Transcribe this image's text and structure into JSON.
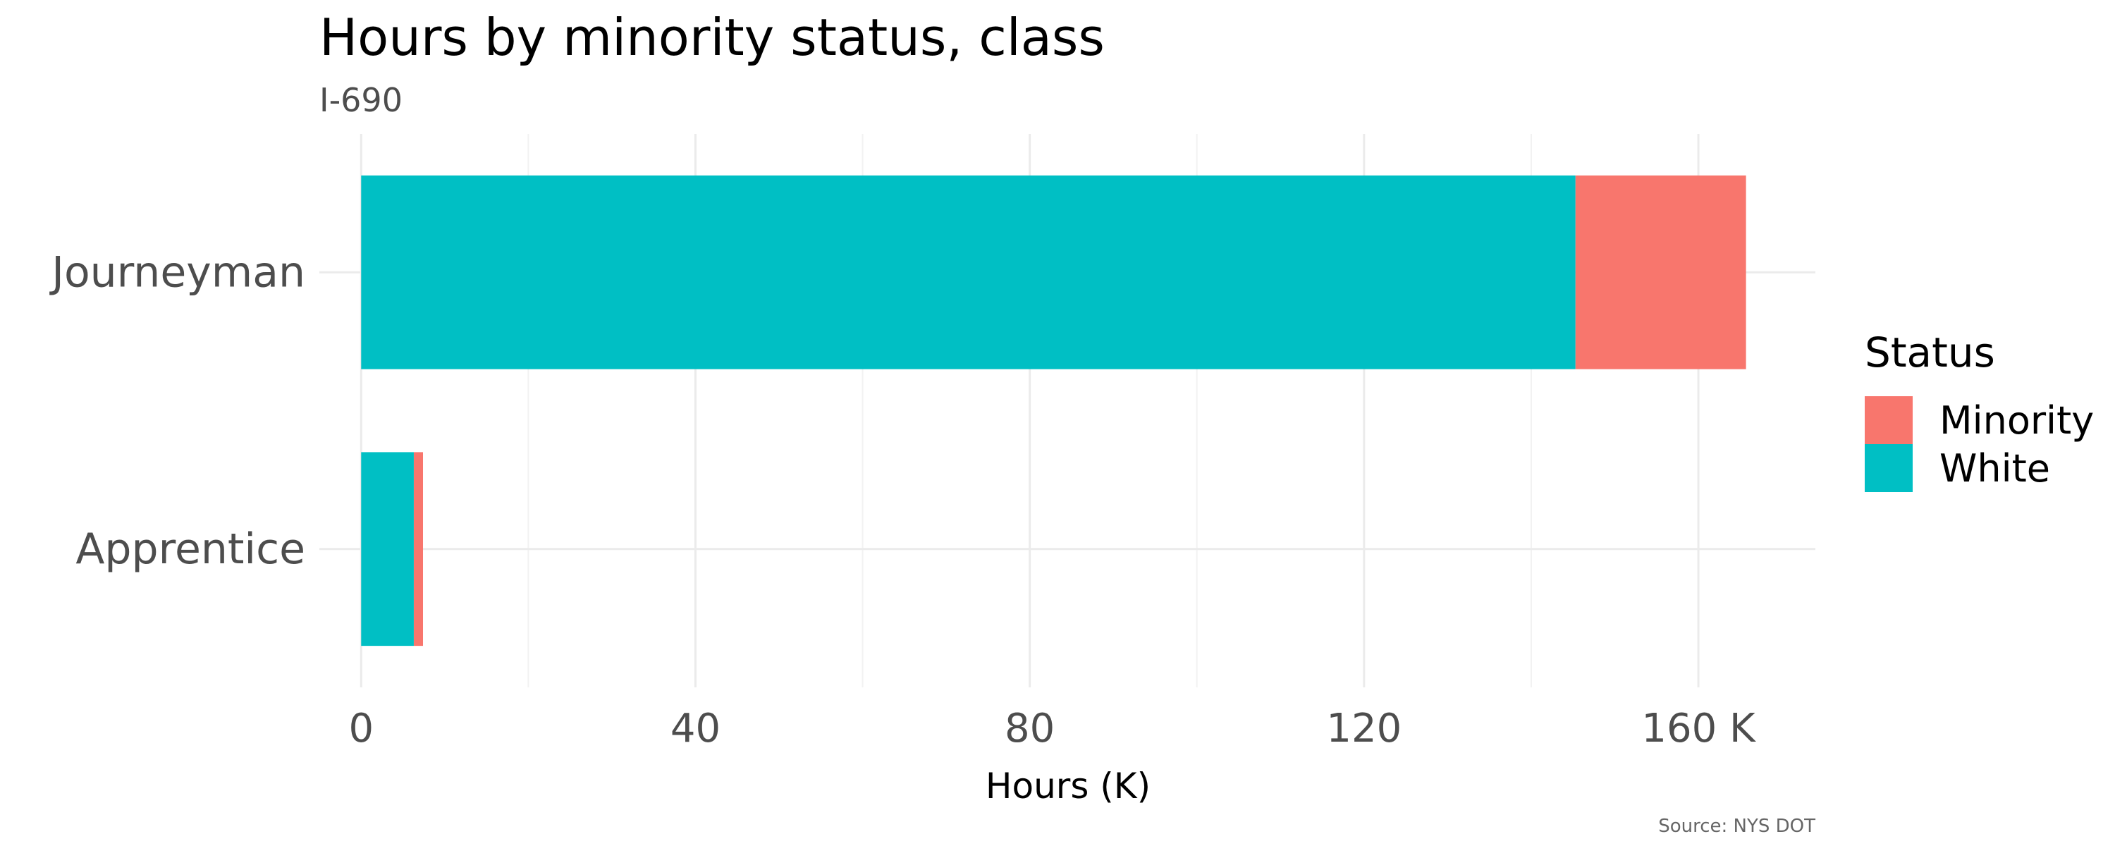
{
  "chart_data": {
    "type": "bar",
    "orientation": "horizontal",
    "stacked": true,
    "title": "Hours by minority status, class",
    "subtitle": "I-690",
    "xlabel": "Hours (K)",
    "ylabel": "",
    "caption": "Source: NYS DOT",
    "categories": [
      "Journeyman",
      "Apprentice"
    ],
    "series": [
      {
        "name": "White",
        "color": "#00BFC4",
        "values": [
          145.3,
          6.3
        ]
      },
      {
        "name": "Minority",
        "color": "#F8766D",
        "values": [
          20.4,
          1.1
        ]
      }
    ],
    "xlim": [
      -5,
      174
    ],
    "xticks": [
      0,
      40,
      80,
      120,
      160
    ],
    "xtick_labels": [
      "0",
      "40",
      "80",
      "120",
      "160 K"
    ],
    "grid": true,
    "legend": {
      "title": "Status",
      "position": "right",
      "order": [
        "Minority",
        "White"
      ]
    }
  }
}
